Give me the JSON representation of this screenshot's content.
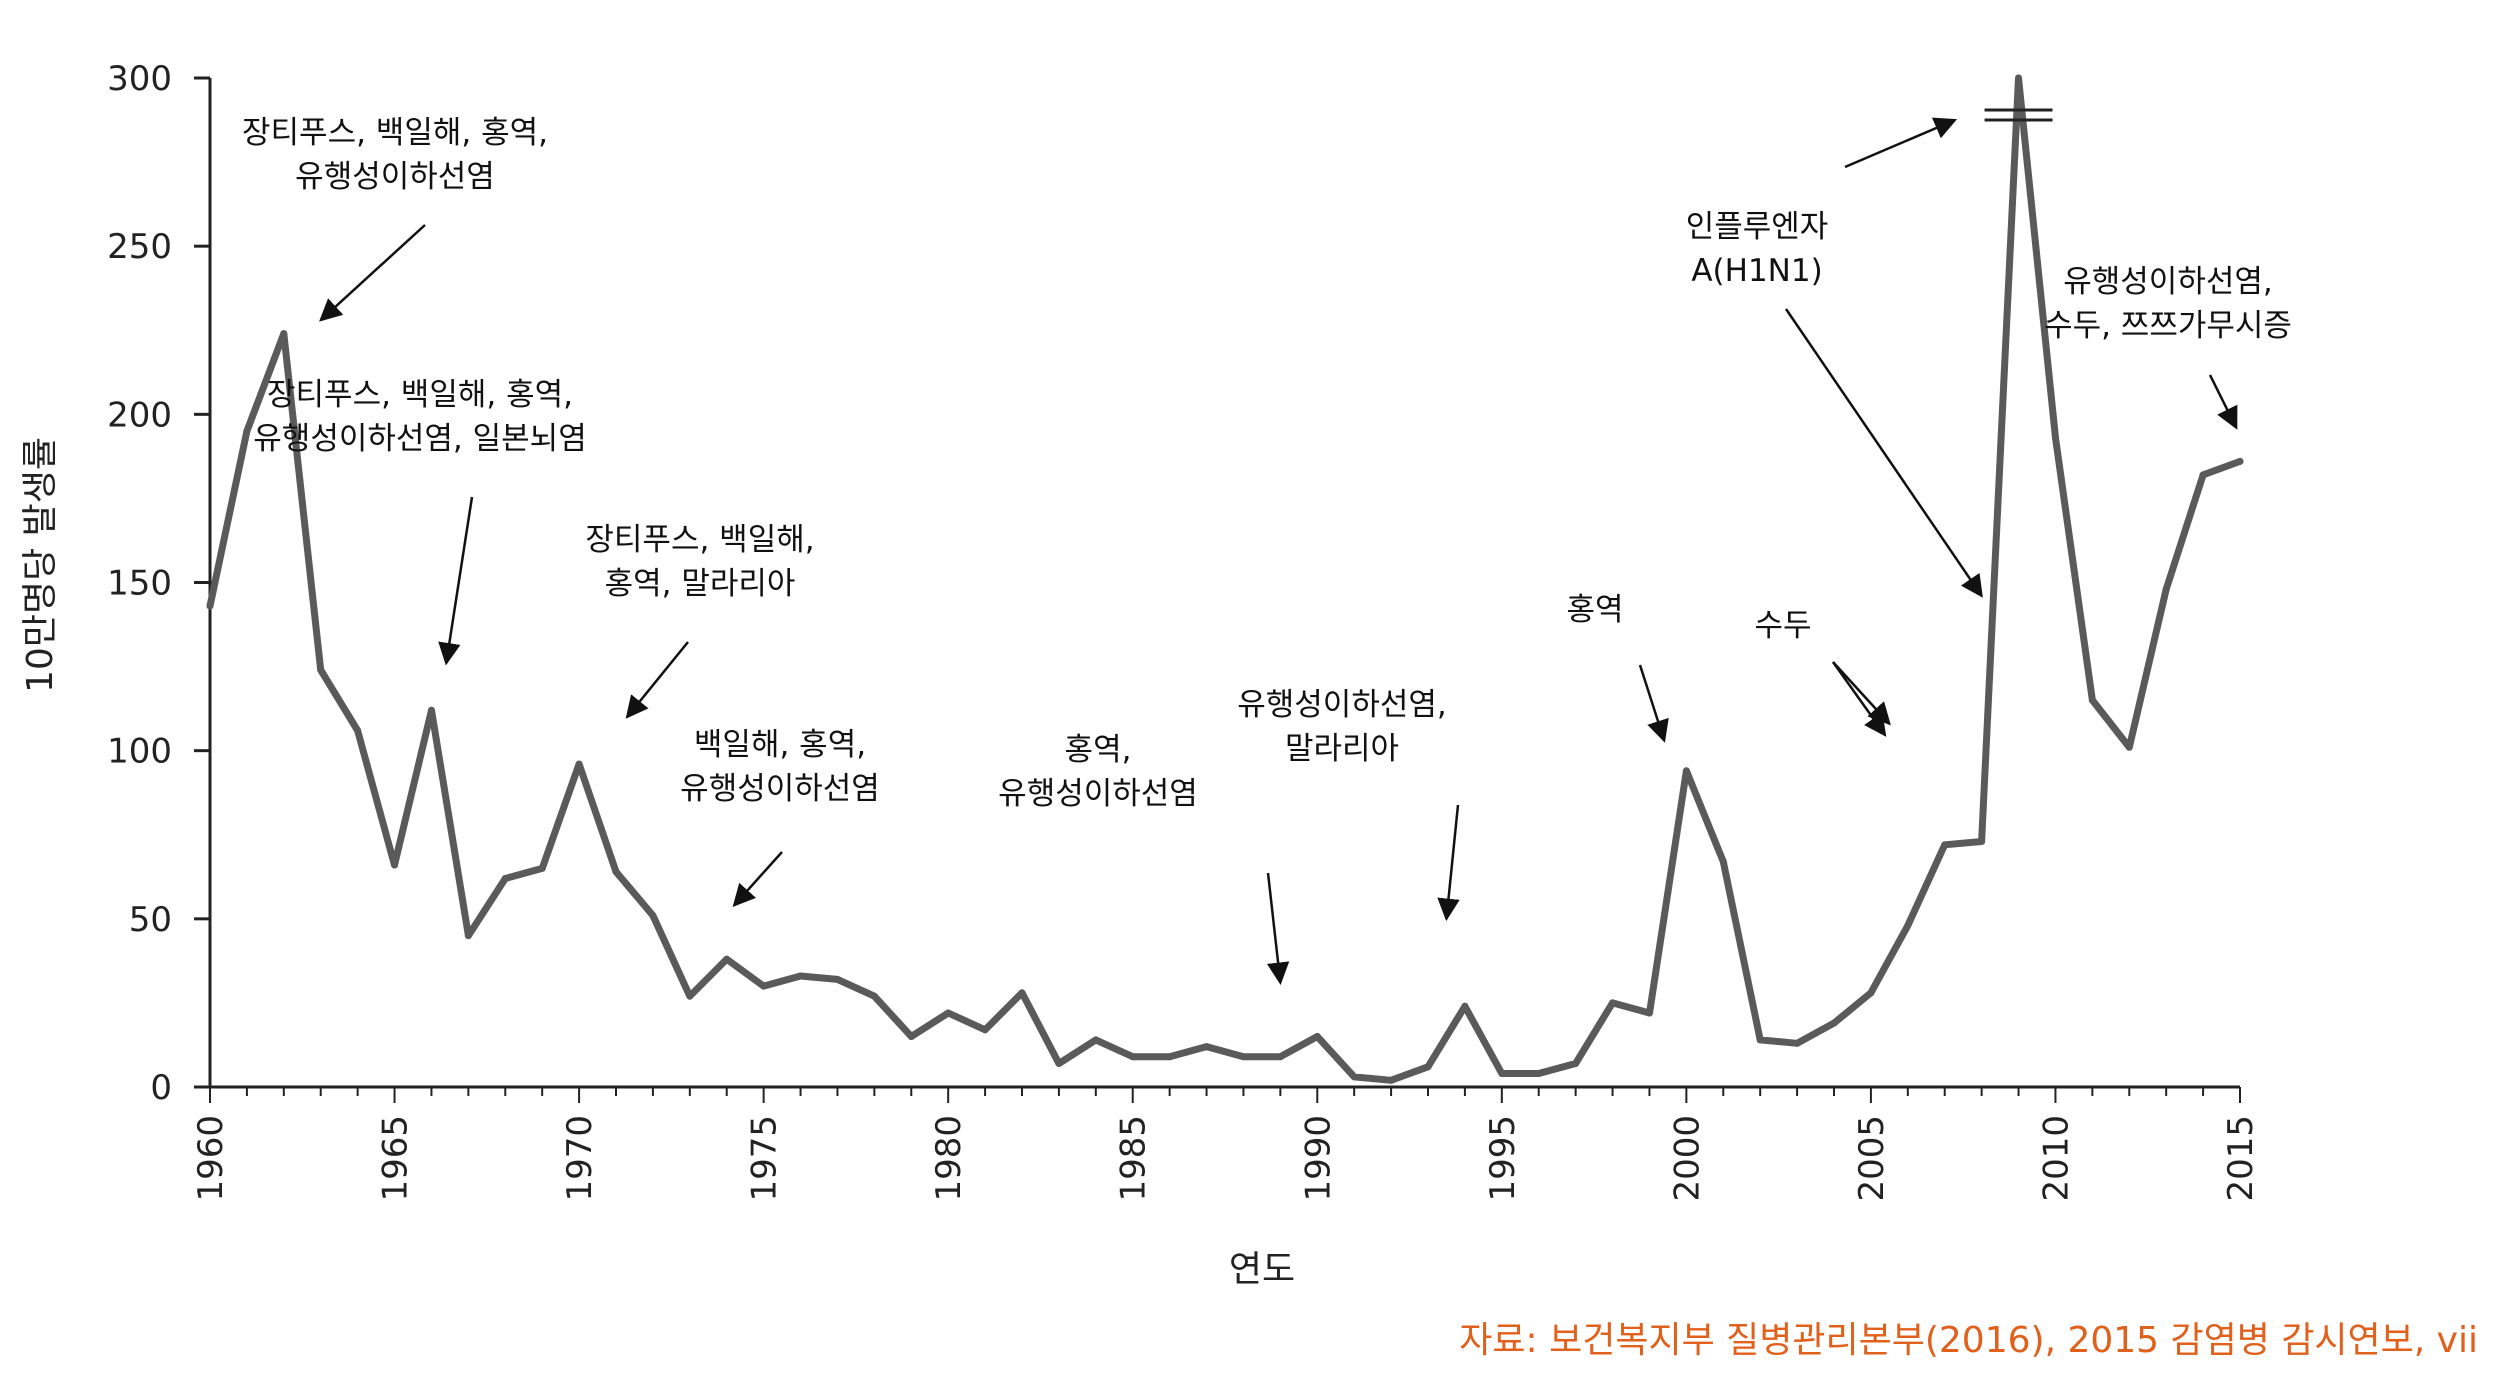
{
  "colors": {
    "line": "#5a5a5a",
    "axis": "#222222",
    "source": "#e0601c"
  },
  "chart_data": {
    "type": "line",
    "xlabel": "연도",
    "ylabel": "10만명당 발생률",
    "xlim": [
      1960,
      2015
    ],
    "ylim": [
      0,
      300
    ],
    "grid": false,
    "yticks": [
      0,
      50,
      100,
      150,
      200,
      250,
      300
    ],
    "xticks": [
      1960,
      1965,
      1970,
      1975,
      1980,
      1985,
      1990,
      1995,
      2000,
      2005,
      2010,
      2015
    ],
    "x": [
      1960,
      1961,
      1962,
      1963,
      1964,
      1965,
      1966,
      1967,
      1968,
      1969,
      1970,
      1971,
      1972,
      1973,
      1974,
      1975,
      1976,
      1977,
      1978,
      1979,
      1980,
      1981,
      1982,
      1983,
      1984,
      1985,
      1986,
      1987,
      1988,
      1989,
      1990,
      1991,
      1992,
      1993,
      1994,
      1995,
      1996,
      1997,
      1998,
      1999,
      2000,
      2001,
      2002,
      2003,
      2004,
      2005,
      2006,
      2007,
      2008,
      2009,
      2010,
      2011,
      2012,
      2013,
      2014,
      2015
    ],
    "series": [
      {
        "values": [
          143,
          195,
          224,
          124,
          106,
          66,
          112,
          45,
          62,
          65,
          96,
          64,
          51,
          27,
          38,
          30,
          33,
          32,
          27,
          15,
          22,
          17,
          28,
          7,
          14,
          9,
          9,
          12,
          9,
          9,
          15,
          3,
          2,
          6,
          24,
          4,
          4,
          7,
          25,
          22,
          94,
          67,
          14,
          13,
          19,
          28,
          48,
          72,
          73,
          300,
          193,
          115,
          101,
          148,
          182,
          186
        ]
      }
    ],
    "break_mark": {
      "x": 2009,
      "y": 289
    },
    "annotations": [
      {
        "lines": [
          "장티푸스, 백일해, 홍역,",
          "유행성이하선염"
        ],
        "target_x": 1963,
        "target_y": 228
      },
      {
        "lines": [
          "장티푸스, 백일해, 홍역,",
          "유행성이하선염, 일본뇌염"
        ],
        "target_x": 1966.4,
        "target_y": 126
      },
      {
        "lines": [
          "장티푸스, 백일해,",
          "홍역, 말라리아"
        ],
        "target_x": 1971.3,
        "target_y": 110
      },
      {
        "lines": [
          "백일해, 홍역,",
          "유행성이하선염"
        ],
        "target_x": 1974.2,
        "target_y": 54
      },
      {
        "lines": [
          "홍역,",
          "유행성이하선염"
        ],
        "target_x": 1989,
        "target_y": 31
      },
      {
        "lines": [
          "유행성이하선염,",
          "말라리아"
        ],
        "target_x": 1993.5,
        "target_y": 50
      },
      {
        "lines": [
          "홍역"
        ],
        "target_x": 1999.4,
        "target_y": 103
      },
      {
        "lines": [
          "수두"
        ],
        "target_x": 2005.5,
        "target_y": 108
      },
      {
        "lines": [
          "인플루엔자",
          "A(H1N1)"
        ],
        "target_x": 2008,
        "target_y": 146
      },
      {
        "lines": [
          "유행성이하선염,",
          "수두, 쯔쯔가무시증"
        ],
        "target_x": 2014.9,
        "target_y": 196
      }
    ]
  },
  "source_text": "자료: 보건복지부 질병관리본부(2016), 2015 감염병 감시연보, vii"
}
